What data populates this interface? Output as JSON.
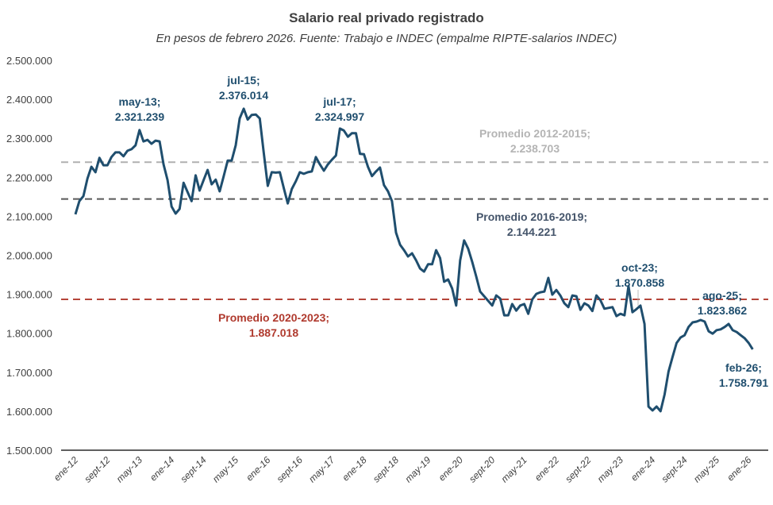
{
  "chart_data": {
    "type": "line",
    "title": "Salario  real privado  registrado",
    "subtitle": "En pesos de febrero 2026. Fuente: Trabajo e INDEC (empalme RIPTE-salarios INDEC)",
    "xlabel": "",
    "ylabel": "",
    "ylim": [
      1500000,
      2500000
    ],
    "grid": false,
    "legend": "none",
    "x_start": "ene-12",
    "x_end": "feb-26",
    "x_frequency": "monthly",
    "x_tick_labels": [
      "ene-12",
      "sept-12",
      "may-13",
      "ene-14",
      "sept-14",
      "may-15",
      "ene-16",
      "sept-16",
      "may-17",
      "ene-18",
      "sept-18",
      "may-19",
      "ene-20",
      "sept-20",
      "may-21",
      "ene-22",
      "sept-22",
      "may-23",
      "ene-24",
      "sept-24",
      "may-25",
      "ene-26"
    ],
    "y_tick_labels": [
      "1.500.000",
      "1.600.000",
      "1.700.000",
      "1.800.000",
      "1.900.000",
      "2.000.000",
      "2.100.000",
      "2.200.000",
      "2.300.000",
      "2.400.000",
      "2.500.000"
    ],
    "y_ticks": [
      1500000,
      1600000,
      1700000,
      1800000,
      1900000,
      2000000,
      2100000,
      2200000,
      2300000,
      2400000,
      2500000
    ],
    "series": [
      {
        "color": "#1f4e6e",
        "values": [
          2105000,
          2139000,
          2152000,
          2197000,
          2227000,
          2213000,
          2250000,
          2231000,
          2231000,
          2252000,
          2264000,
          2264000,
          2254000,
          2268000,
          2272000,
          2282000,
          2321239,
          2292000,
          2296000,
          2286000,
          2294000,
          2292000,
          2233000,
          2193000,
          2125000,
          2107000,
          2119000,
          2186000,
          2162000,
          2139000,
          2205000,
          2166000,
          2193000,
          2219000,
          2182000,
          2194000,
          2164000,
          2203000,
          2243000,
          2243000,
          2282000,
          2351000,
          2376014,
          2348000,
          2360000,
          2361000,
          2351000,
          2262000,
          2178000,
          2213000,
          2212000,
          2213000,
          2172000,
          2133000,
          2170000,
          2190000,
          2213000,
          2209000,
          2213000,
          2215000,
          2252000,
          2233000,
          2217000,
          2233000,
          2245000,
          2256000,
          2324997,
          2320000,
          2304000,
          2313000,
          2313000,
          2260000,
          2259000,
          2227000,
          2203000,
          2215000,
          2225000,
          2180000,
          2164000,
          2139000,
          2058000,
          2027000,
          2013000,
          1997000,
          2005000,
          1987000,
          1966000,
          1958000,
          1977000,
          1977000,
          2013000,
          1993000,
          1932000,
          1938000,
          1915000,
          1871000,
          1987000,
          2038000,
          2017000,
          1983000,
          1946000,
          1907000,
          1895000,
          1883000,
          1871000,
          1897000,
          1889000,
          1846000,
          1846000,
          1875000,
          1858000,
          1871000,
          1875000,
          1850000,
          1887000,
          1901000,
          1905000,
          1907000,
          1942000,
          1899000,
          1911000,
          1897000,
          1877000,
          1867000,
          1897000,
          1895000,
          1860000,
          1877000,
          1871000,
          1857000,
          1897000,
          1885000,
          1863000,
          1865000,
          1867000,
          1844000,
          1850000,
          1846000,
          1921000,
          1854000,
          1862000,
          1870858,
          1824000,
          1612000,
          1602000,
          1612000,
          1600000,
          1643000,
          1702000,
          1739000,
          1775000,
          1789000,
          1795000,
          1816000,
          1828000,
          1830000,
          1834000,
          1830000,
          1805000,
          1799000,
          1808000,
          1810000,
          1816000,
          1823862,
          1808000,
          1803000,
          1795000,
          1787000,
          1775000,
          1758791
        ]
      }
    ],
    "reference_lines": [
      {
        "label": "Promedio 2012-2015;",
        "value_label": "2.238.703",
        "value": 2238703,
        "color": "#b0b0b0",
        "text_color": "#b4b4b4"
      },
      {
        "label": "Promedio 2016-2019;",
        "value_label": "2.144.221",
        "value": 2144221,
        "color": "#595959",
        "text_color": "#44546a"
      },
      {
        "label": "Promedio 2020-2023;",
        "value_label": "1.887.018",
        "value": 1887018,
        "color": "#b5453a",
        "text_color": "#b03a2e"
      }
    ],
    "annotations": [
      {
        "label": "may-13;",
        "value_label": "2.321.239"
      },
      {
        "label": "jul-15;",
        "value_label": "2.376.014"
      },
      {
        "label": "jul-17;",
        "value_label": "2.324.997"
      },
      {
        "label": "oct-23;",
        "value_label": "1.870.858"
      },
      {
        "label": "ago-25;",
        "value_label": "1.823.862"
      },
      {
        "label": "feb-26;",
        "value_label": "1.758.791"
      }
    ]
  }
}
